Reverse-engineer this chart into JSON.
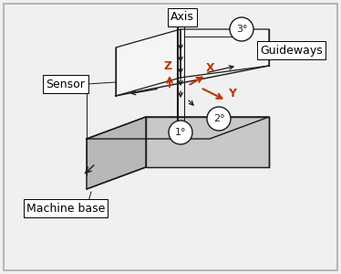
{
  "bg_color": "#f0f0f0",
  "border_color": "#aaaaaa",
  "line_color": "#1a1a1a",
  "orange_color": "#bb3300",
  "dark_gray": "#555555",
  "light_gray": "#d0d0d0",
  "mid_gray": "#b8b8b8",
  "white": "#ffffff",
  "label_axis": "Axis",
  "label_guideways": "Guideways",
  "label_sensor": "Sensor",
  "label_machine_base": "Machine base",
  "label_x": "X",
  "label_y": "Y",
  "label_z": "Z",
  "label_1": "1°",
  "label_2": "2°",
  "label_3": "3°"
}
